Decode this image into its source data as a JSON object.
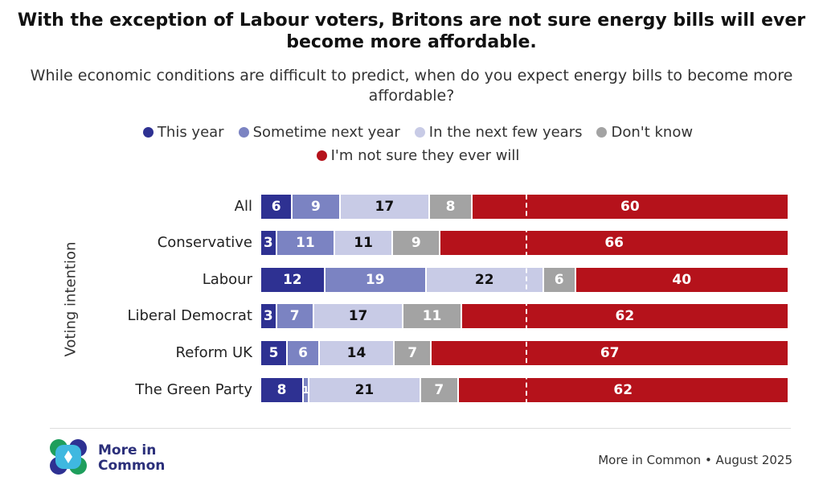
{
  "chart_data": {
    "type": "bar",
    "orientation": "horizontal",
    "stacked": true,
    "title": "With the exception of Labour voters, Britons are not sure energy bills will ever become more affordable.",
    "subtitle": "While economic conditions are difficult to predict, when do you expect energy bills to become more affordable?",
    "ylabel": "Voting intention",
    "xlim": [
      0,
      100
    ],
    "reference_line": 50,
    "categories": [
      "All",
      "Conservative",
      "Labour",
      "Liberal Democrat",
      "Reform UK",
      "The Green Party"
    ],
    "series": [
      {
        "name": "This year",
        "color": "#2e3192",
        "values": [
          6,
          3,
          12,
          3,
          5,
          8
        ]
      },
      {
        "name": "Sometime next year",
        "color": "#7b83c2",
        "values": [
          9,
          11,
          19,
          7,
          6,
          1
        ]
      },
      {
        "name": "In the next few years",
        "color": "#c8cbe6",
        "values": [
          17,
          11,
          22,
          17,
          14,
          21
        ]
      },
      {
        "name": "Don't know",
        "color": "#a3a3a3",
        "values": [
          8,
          9,
          6,
          11,
          7,
          7
        ]
      },
      {
        "name": "I'm not sure they ever will",
        "color": "#b5121b",
        "values": [
          60,
          66,
          40,
          62,
          67,
          62
        ]
      }
    ],
    "hatched_rows": [
      "All"
    ],
    "legend_position": "top"
  },
  "footer": {
    "logo_text_1": "More in",
    "logo_text_2": "Common",
    "source": "More in Common • August 2025"
  }
}
